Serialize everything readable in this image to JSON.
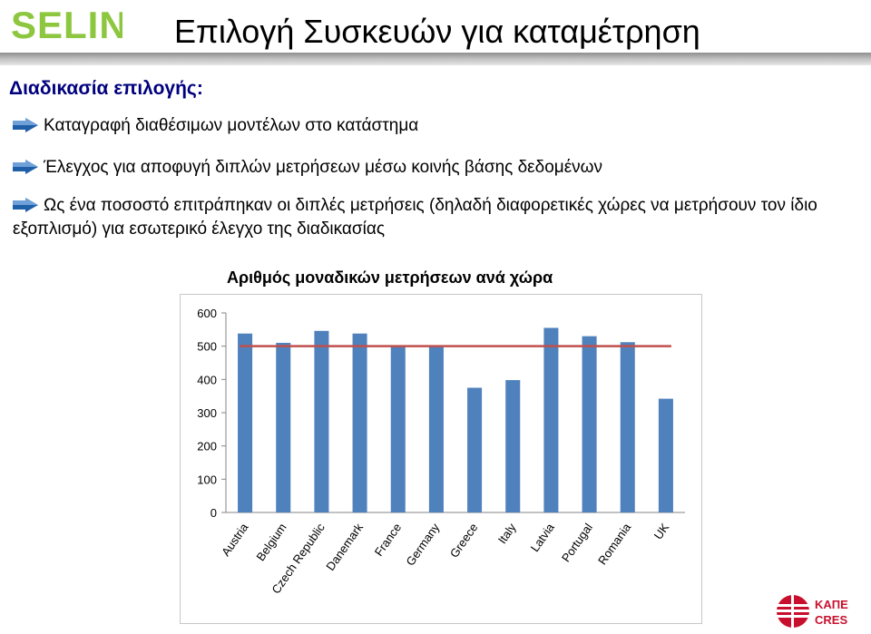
{
  "logo": {
    "text": "SELINA"
  },
  "title": "Επιλογή Συσκευών για καταμέτρηση",
  "section_heading": "Διαδικασία επιλογής:",
  "bullets": [
    "Καταγραφή διαθέσιμων μοντέλων στο κατάστημα",
    "Έλεγχος για αποφυγή διπλών μετρήσεων μέσω κοινής βάσης δεδομένων",
    "Ως ένα ποσοστό επιτράπηκαν οι διπλές μετρήσεις (δηλαδή διαφορετικές χώρες να μετρήσουν τον ίδιο εξοπλισμό) για εσωτερικό έλεγχο της διαδικασίας"
  ],
  "chart_data": {
    "type": "bar",
    "title": "Αριθμός μοναδικών μετρήσεων ανά χώρα",
    "categories": [
      "Austria",
      "Belgium",
      "Czech Republic",
      "Danemark",
      "France",
      "Germany",
      "Greece",
      "Italy",
      "Latvia",
      "Portugal",
      "Romania",
      "UK"
    ],
    "values": [
      538,
      510,
      546,
      538,
      500,
      500,
      375,
      398,
      555,
      530,
      512,
      342
    ],
    "target_line": 500,
    "ylim": [
      0,
      600
    ],
    "yticks": [
      "0",
      "100",
      "200",
      "300",
      "400",
      "500",
      "600"
    ],
    "grid": false,
    "legend": "none",
    "bar_color": "#4f81bd",
    "line_color": "#c0504d"
  },
  "footer_logo": {
    "text_top": "ΚΑΠΕ",
    "text_bottom": "CRES",
    "color": "#c8102e"
  },
  "colors": {
    "heading": "#00007e",
    "logo_green": "#8dc63f",
    "arrow": "#1f5fa8"
  }
}
